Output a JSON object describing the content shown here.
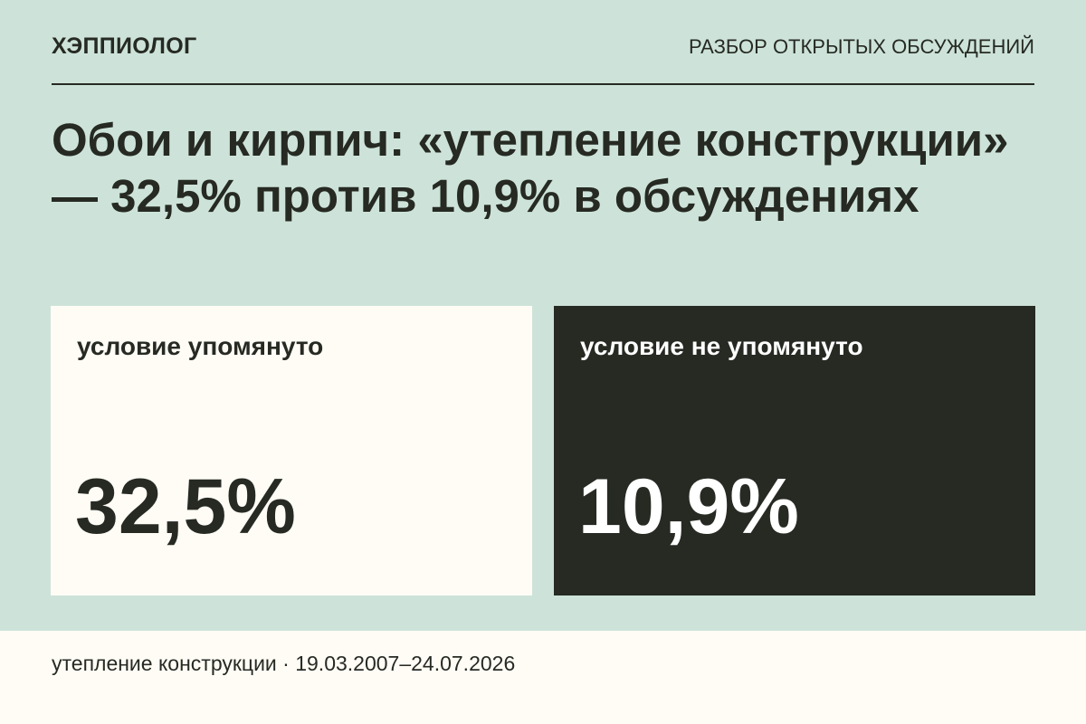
{
  "header": {
    "brand": "ХЭППИОЛОГ",
    "section": "РАЗБОР ОТКРЫТЫХ ОБСУЖДЕНИЙ"
  },
  "headline": "Обои и кирпич: «утепление конструкции» — 32,5% против 10,9% в обсуждениях",
  "cards": [
    {
      "label": "условие упомянуто",
      "value": "32,5%"
    },
    {
      "label": "условие не упомянуто",
      "value": "10,9%"
    }
  ],
  "footer": {
    "text": "утепление конструкции · 19.03.2007–24.07.2026"
  },
  "colors": {
    "background": "#cde3da",
    "light_panel": "#fffcf5",
    "dark_panel": "#262a23",
    "text_dark": "#262a23",
    "text_light": "#ffffff"
  }
}
